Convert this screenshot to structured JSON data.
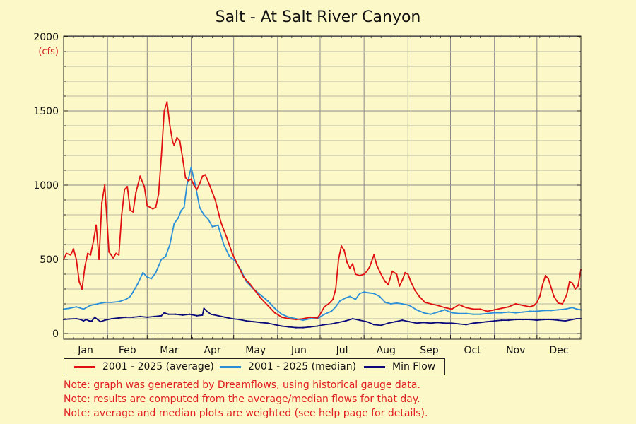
{
  "chart_data": {
    "type": "line",
    "title": "Salt - At Salt River Canyon",
    "ylabel": "(cfs)",
    "ylim": [
      0,
      2000
    ],
    "y_ticks": [
      0,
      500,
      1000,
      1500,
      2000
    ],
    "x_ticks": [
      "Jan",
      "Feb",
      "Mar",
      "Apr",
      "May",
      "Jun",
      "Jul",
      "Aug",
      "Sep",
      "Oct",
      "Nov",
      "Dec"
    ],
    "x_unit": "day of year",
    "xlim": [
      1,
      366
    ],
    "grid": true,
    "legend_position": "bottom",
    "series": [
      {
        "name": "2001 - 2025 (average)",
        "color": "#e01010",
        "x": [
          1,
          3,
          6,
          8,
          10,
          12,
          14,
          16,
          18,
          20,
          22,
          24,
          26,
          28,
          30,
          32,
          33,
          36,
          38,
          40,
          42,
          44,
          46,
          48,
          50,
          52,
          55,
          58,
          60,
          62,
          64,
          66,
          68,
          70,
          72,
          74,
          76,
          78,
          79,
          81,
          83,
          85,
          87,
          89,
          91,
          93,
          95,
          97,
          99,
          101,
          104,
          108,
          112,
          116,
          120,
          124,
          128,
          132,
          136,
          140,
          145,
          150,
          155,
          160,
          165,
          170,
          175,
          180,
          182,
          185,
          188,
          191,
          193,
          195,
          197,
          199,
          201,
          203,
          205,
          207,
          210,
          213,
          215,
          217,
          220,
          222,
          224,
          226,
          228,
          230,
          233,
          236,
          238,
          240,
          242,
          244,
          246,
          249,
          252,
          256,
          260,
          265,
          270,
          275,
          280,
          285,
          290,
          295,
          300,
          305,
          310,
          315,
          320,
          325,
          330,
          333,
          335,
          337,
          339,
          341,
          343,
          345,
          347,
          350,
          353,
          356,
          358,
          360,
          362,
          364,
          366
        ],
        "y": [
          500,
          540,
          530,
          570,
          500,
          350,
          300,
          450,
          540,
          530,
          620,
          730,
          500,
          880,
          1000,
          700,
          550,
          510,
          540,
          530,
          800,
          970,
          990,
          830,
          820,
          950,
          1060,
          990,
          860,
          850,
          840,
          850,
          940,
          1200,
          1500,
          1560,
          1400,
          1290,
          1270,
          1320,
          1300,
          1180,
          1050,
          1030,
          1040,
          1000,
          970,
          1010,
          1060,
          1070,
          1000,
          900,
          750,
          650,
          540,
          460,
          380,
          340,
          290,
          240,
          190,
          140,
          110,
          100,
          95,
          100,
          110,
          105,
          130,
          180,
          200,
          230,
          300,
          500,
          590,
          560,
          480,
          440,
          470,
          400,
          390,
          400,
          420,
          450,
          530,
          460,
          420,
          380,
          350,
          330,
          420,
          400,
          320,
          360,
          410,
          400,
          350,
          290,
          250,
          210,
          200,
          190,
          175,
          165,
          195,
          175,
          165,
          165,
          150,
          160,
          170,
          180,
          200,
          190,
          180,
          190,
          210,
          250,
          330,
          390,
          370,
          310,
          250,
          205,
          200,
          260,
          350,
          340,
          300,
          320,
          430
        ]
      },
      {
        "name": "2001 - 2025 (median)",
        "color": "#2a8fd8",
        "x": [
          1,
          5,
          10,
          15,
          20,
          25,
          30,
          35,
          40,
          45,
          48,
          50,
          53,
          57,
          60,
          63,
          66,
          70,
          73,
          76,
          79,
          82,
          84,
          86,
          88,
          91,
          94,
          97,
          100,
          103,
          106,
          110,
          114,
          118,
          122,
          126,
          130,
          135,
          140,
          145,
          150,
          155,
          160,
          165,
          170,
          175,
          180,
          185,
          190,
          193,
          196,
          200,
          203,
          207,
          210,
          213,
          216,
          220,
          224,
          228,
          232,
          236,
          240,
          245,
          250,
          255,
          260,
          265,
          270,
          275,
          280,
          285,
          290,
          295,
          300,
          305,
          310,
          315,
          320,
          325,
          330,
          335,
          340,
          345,
          350,
          355,
          360,
          363,
          366
        ],
        "y": [
          165,
          170,
          180,
          165,
          190,
          200,
          210,
          210,
          215,
          230,
          250,
          280,
          330,
          410,
          380,
          370,
          410,
          500,
          520,
          600,
          740,
          780,
          830,
          850,
          1000,
          1120,
          1000,
          850,
          800,
          770,
          720,
          730,
          600,
          520,
          490,
          430,
          350,
          300,
          260,
          220,
          170,
          130,
          110,
          100,
          90,
          100,
          100,
          130,
          150,
          180,
          220,
          240,
          250,
          230,
          270,
          280,
          275,
          270,
          250,
          210,
          200,
          205,
          200,
          190,
          160,
          140,
          130,
          145,
          160,
          140,
          135,
          135,
          130,
          130,
          135,
          140,
          140,
          145,
          140,
          145,
          150,
          150,
          155,
          155,
          160,
          165,
          175,
          165,
          160
        ]
      },
      {
        "name": "Min Flow",
        "color": "#0a0a7a",
        "x": [
          1,
          5,
          10,
          13,
          15,
          17,
          19,
          21,
          23,
          25,
          27,
          30,
          35,
          40,
          45,
          50,
          55,
          60,
          65,
          70,
          72,
          75,
          80,
          85,
          90,
          95,
          99,
          100,
          102,
          105,
          110,
          115,
          120,
          125,
          130,
          135,
          140,
          145,
          150,
          155,
          160,
          165,
          170,
          175,
          180,
          185,
          190,
          195,
          200,
          205,
          210,
          215,
          220,
          225,
          230,
          235,
          240,
          245,
          250,
          255,
          260,
          265,
          270,
          275,
          280,
          285,
          290,
          295,
          300,
          305,
          310,
          315,
          320,
          325,
          330,
          335,
          340,
          345,
          350,
          355,
          360,
          363,
          366
        ],
        "y": [
          95,
          98,
          100,
          95,
          85,
          95,
          85,
          85,
          110,
          95,
          80,
          90,
          100,
          105,
          110,
          110,
          115,
          110,
          115,
          120,
          140,
          130,
          130,
          125,
          130,
          120,
          125,
          170,
          150,
          130,
          120,
          110,
          100,
          95,
          85,
          80,
          75,
          70,
          60,
          50,
          45,
          40,
          40,
          45,
          50,
          60,
          65,
          75,
          85,
          100,
          90,
          80,
          60,
          55,
          70,
          80,
          90,
          80,
          70,
          75,
          70,
          75,
          70,
          70,
          65,
          60,
          70,
          75,
          80,
          85,
          90,
          90,
          95,
          95,
          95,
          90,
          95,
          95,
          90,
          85,
          95,
          100,
          100
        ]
      }
    ]
  },
  "notes": [
    "Note: graph was generated by Dreamflows, using historical gauge data.",
    "Note: results are computed from the average/median flows for that day.",
    "Note: average and median plots are weighted (see help page for details)."
  ]
}
